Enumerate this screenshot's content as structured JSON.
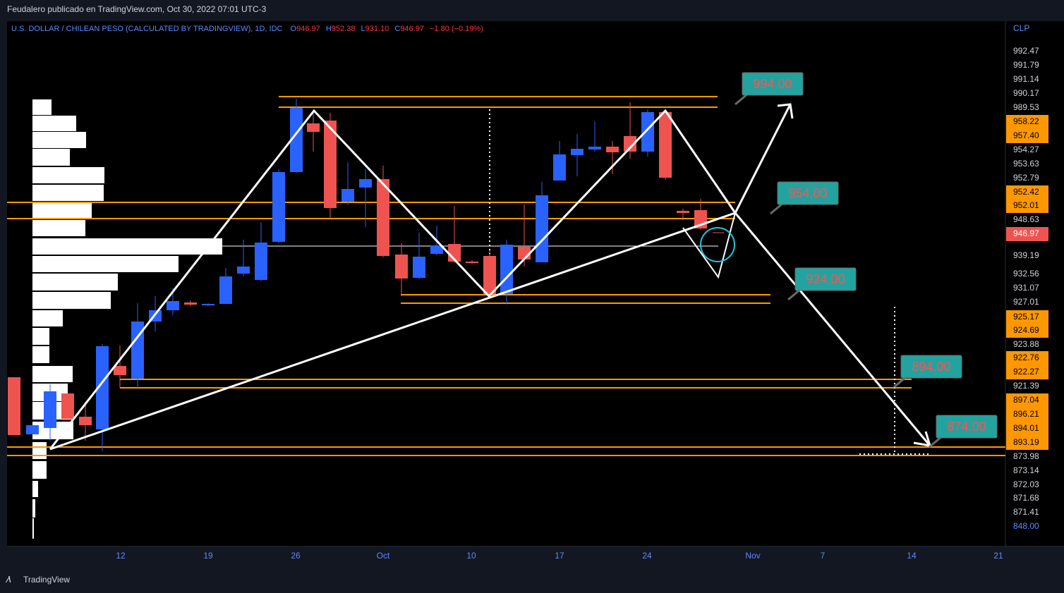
{
  "header": {
    "publisher": "Feudalero publicado en TradingView.com, Oct 30, 2022 07:01 UTC-3"
  },
  "legend": {
    "symbol": "U.S. DOLLAR / CHILEAN PESO (CALCULATED BY TRADINGVIEW), 1D, IDC",
    "open_label": "O",
    "open": "946.97",
    "high_label": "H",
    "high": "952.38",
    "low_label": "L",
    "low": "931.10",
    "close_label": "C",
    "close": "946.97",
    "change": "−1.80 (−0.19%)"
  },
  "price_axis": {
    "currency": "CLP",
    "labels": [
      "992.47",
      "991.79",
      "991.14",
      "990.17",
      "989.53",
      "958.22",
      "957.40",
      "954.27",
      "953.63",
      "952.79",
      "952.42",
      "952.01",
      "948.63",
      "946.97",
      "939.19",
      "932.56",
      "931.07",
      "927.01",
      "925.17",
      "924.69",
      "923.88",
      "922.76",
      "922.27",
      "921.39",
      "897.04",
      "896.21",
      "894.01",
      "893.19",
      "873.98",
      "873.14",
      "872.03",
      "871.68",
      "871.41",
      "848.00"
    ]
  },
  "time_axis": {
    "labels": [
      "12",
      "19",
      "26",
      "Oct",
      "10",
      "17",
      "24",
      "Nov",
      "7",
      "14",
      "21"
    ]
  },
  "callouts": [
    "994.00",
    "954.00",
    "924.00",
    "894.00",
    "874.00"
  ],
  "footer": {
    "brand": "TradingView"
  }
}
